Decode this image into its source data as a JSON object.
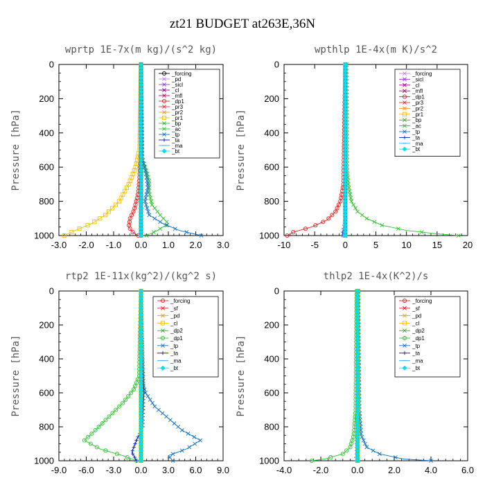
{
  "title": "zt21  BUDGET at263E,36N",
  "ylabel": "Pressure [hPa]",
  "chart_data": [
    {
      "type": "line",
      "title": "wprtp  1E-7x(m kg)/(s^2 kg)",
      "ylabel": "Pressure [hPa]",
      "xlim": [
        -3,
        3
      ],
      "ylim": [
        1000,
        0
      ],
      "xticks": [
        "-3.0",
        "-2.0",
        "-1.0",
        "0.0",
        "1.0",
        "2.0",
        "3.0"
      ],
      "xtick_values": [
        -3,
        -2,
        -1,
        0,
        1,
        2,
        3
      ],
      "yticks": [
        "0",
        "200",
        "400",
        "600",
        "800",
        "1000"
      ],
      "ytick_values": [
        0,
        200,
        400,
        600,
        800,
        1000
      ],
      "series": [
        {
          "name": "_forcing",
          "color": "#000000",
          "marker": "o",
          "p": [
            0,
            1000
          ],
          "x": [
            0,
            0
          ]
        },
        {
          "name": "_pd",
          "color": "#c080ff",
          "marker": "x",
          "p": [
            0,
            1000
          ],
          "x": [
            0,
            0
          ]
        },
        {
          "name": "_sicl",
          "color": "#8a3fd6",
          "marker": "x",
          "p": [
            0,
            1000
          ],
          "x": [
            0,
            0
          ]
        },
        {
          "name": "_cl",
          "color": "#8b008b",
          "marker": "x",
          "p": [
            0,
            1000
          ],
          "x": [
            0,
            0
          ]
        },
        {
          "name": "_mfl",
          "color": "#c0006a",
          "marker": "x",
          "p": [
            0,
            1000
          ],
          "x": [
            0,
            0
          ]
        },
        {
          "name": "_dp1",
          "color": "#e02020",
          "marker": "o",
          "p": [
            0,
            500,
            650,
            750,
            850,
            900,
            950,
            980,
            1000
          ],
          "x": [
            0,
            0,
            -0.05,
            -0.1,
            -0.25,
            -0.4,
            -0.45,
            -0.3,
            -0.1
          ]
        },
        {
          "name": "_pr3",
          "color": "#e03030",
          "marker": "x",
          "p": [
            0,
            1000
          ],
          "x": [
            0,
            0
          ]
        },
        {
          "name": "_pr2",
          "color": "#ff9020",
          "marker": "x",
          "p": [
            0,
            1000
          ],
          "x": [
            0,
            0
          ]
        },
        {
          "name": "_pr1",
          "color": "#f0c000",
          "marker": "s",
          "p": [
            0,
            500,
            600,
            700,
            800,
            880,
            930,
            970,
            1000
          ],
          "x": [
            0,
            -0.05,
            -0.2,
            -0.45,
            -0.8,
            -1.3,
            -1.8,
            -2.4,
            -2.8
          ]
        },
        {
          "name": "_bp",
          "color": "#30b030",
          "marker": "x",
          "p": [
            0,
            1000
          ],
          "x": [
            0,
            0
          ]
        },
        {
          "name": "_ac",
          "color": "#30c030",
          "marker": "x",
          "p": [
            0,
            550,
            620,
            680,
            750,
            820,
            880,
            930,
            970,
            1000
          ],
          "x": [
            0,
            0.05,
            0.2,
            0.3,
            0.3,
            0.4,
            0.7,
            1.0,
            0.6,
            0.2
          ]
        },
        {
          "name": "_tp",
          "color": "#1070c0",
          "marker": "x",
          "p": [
            0,
            550,
            650,
            720,
            800,
            880,
            930,
            970,
            1000
          ],
          "x": [
            0,
            0.05,
            0.2,
            0.25,
            0.15,
            0.3,
            0.8,
            1.4,
            2.2
          ]
        },
        {
          "name": "_ta",
          "color": "#0020c0",
          "marker": "+",
          "p": [
            0,
            1000
          ],
          "x": [
            0,
            0
          ]
        },
        {
          "name": "_ma",
          "color": "#40a0ff",
          "marker": "-",
          "p": [
            0,
            1000
          ],
          "x": [
            0,
            0
          ]
        },
        {
          "name": "_bt",
          "color": "#00e0f0",
          "marker": "d",
          "p": [
            0,
            1000
          ],
          "x": [
            0,
            0
          ]
        }
      ]
    },
    {
      "type": "line",
      "title": "wpthlp  1E-4x(m K)/s^2",
      "ylabel": "Pressure [hPa]",
      "xlim": [
        -10,
        20
      ],
      "ylim": [
        1000,
        0
      ],
      "xticks": [
        "-10",
        "-5",
        "0",
        "5",
        "10",
        "15",
        "20"
      ],
      "xtick_values": [
        -10,
        -5,
        0,
        5,
        10,
        15,
        20
      ],
      "yticks": [
        "0",
        "200",
        "400",
        "600",
        "800",
        "1000"
      ],
      "ytick_values": [
        0,
        200,
        400,
        600,
        800,
        1000
      ],
      "series": [
        {
          "name": "_forcing",
          "color": "#c080ff",
          "marker": "x",
          "p": [
            0,
            1000
          ],
          "x": [
            0,
            0
          ]
        },
        {
          "name": "_sicl",
          "color": "#8a3fd6",
          "marker": "x",
          "p": [
            0,
            1000
          ],
          "x": [
            0,
            0
          ]
        },
        {
          "name": "_cl",
          "color": "#8b008b",
          "marker": "x",
          "p": [
            0,
            1000
          ],
          "x": [
            0,
            0
          ]
        },
        {
          "name": "_mfl",
          "color": "#c0006a",
          "marker": "x",
          "p": [
            0,
            1000
          ],
          "x": [
            0,
            0
          ]
        },
        {
          "name": "_dp1",
          "color": "#e02020",
          "marker": "o",
          "p": [
            0,
            700,
            800,
            860,
            910,
            950,
            980,
            1000
          ],
          "x": [
            0,
            -0.3,
            -0.8,
            -1.6,
            -3,
            -5.5,
            -8.5,
            -9.5
          ]
        },
        {
          "name": "_pr3",
          "color": "#e03030",
          "marker": "x",
          "p": [
            0,
            1000
          ],
          "x": [
            0,
            0
          ]
        },
        {
          "name": "_pr2",
          "color": "#ff9020",
          "marker": "x",
          "p": [
            0,
            1000
          ],
          "x": [
            0,
            0
          ]
        },
        {
          "name": "_pr1",
          "color": "#f0c000",
          "marker": "s",
          "p": [
            0,
            1000
          ],
          "x": [
            0,
            0
          ]
        },
        {
          "name": "_bp",
          "color": "#30b030",
          "marker": "x",
          "p": [
            0,
            1000
          ],
          "x": [
            0,
            0
          ]
        },
        {
          "name": "_ac",
          "color": "#30c030",
          "marker": "x",
          "p": [
            0,
            600,
            700,
            800,
            860,
            900,
            940,
            970,
            990,
            1000
          ],
          "x": [
            0.2,
            0.3,
            0.5,
            1,
            2,
            3.5,
            6,
            10,
            15,
            18.5
          ]
        },
        {
          "name": "_tp",
          "color": "#1070c0",
          "marker": "x",
          "p": [
            0,
            1000
          ],
          "x": [
            0,
            0
          ]
        },
        {
          "name": "_ta",
          "color": "#0020c0",
          "marker": "+",
          "p": [
            0,
            900,
            960,
            1000
          ],
          "x": [
            0,
            0,
            -0.3,
            -0.5
          ]
        },
        {
          "name": "_ma",
          "color": "#40a0ff",
          "marker": "-",
          "p": [
            0,
            1000
          ],
          "x": [
            0,
            0
          ]
        },
        {
          "name": "_bt",
          "color": "#00e0f0",
          "marker": "d",
          "p": [
            0,
            1000
          ],
          "x": [
            0,
            0
          ]
        }
      ]
    },
    {
      "type": "line",
      "title": "rtp2  1E-11x(kg^2)/(kg^2 s)",
      "ylabel": "Pressure [hPa]",
      "xlim": [
        -9,
        9
      ],
      "ylim": [
        1000,
        0
      ],
      "xticks": [
        "-9.0",
        "-6.0",
        "-3.0",
        "0.0",
        "3.0",
        "6.0",
        "9.0"
      ],
      "xtick_values": [
        -9,
        -6,
        -3,
        0,
        3,
        6,
        9
      ],
      "yticks": [
        "0",
        "200",
        "400",
        "600",
        "800",
        "1000"
      ],
      "ytick_values": [
        0,
        200,
        400,
        600,
        800,
        1000
      ],
      "series": [
        {
          "name": "_forcing",
          "color": "#e02020",
          "marker": "o",
          "p": [
            0,
            1000
          ],
          "x": [
            0,
            0
          ]
        },
        {
          "name": "_sf",
          "color": "#e02020",
          "marker": "x",
          "p": [
            0,
            1000
          ],
          "x": [
            0,
            0
          ]
        },
        {
          "name": "_pd",
          "color": "#f0a000",
          "marker": "x",
          "p": [
            0,
            1000
          ],
          "x": [
            0,
            0
          ]
        },
        {
          "name": "_cl",
          "color": "#f0c000",
          "marker": "s",
          "p": [
            0,
            1000
          ],
          "x": [
            0,
            0
          ]
        },
        {
          "name": "_dp2",
          "color": "#30b030",
          "marker": "x",
          "p": [
            0,
            1000
          ],
          "x": [
            0,
            0
          ]
        },
        {
          "name": "_dp1",
          "color": "#30c030",
          "marker": "o",
          "p": [
            0,
            500,
            580,
            660,
            740,
            820,
            880,
            930,
            970,
            1000
          ],
          "x": [
            0,
            -0.2,
            -0.8,
            -2,
            -3.5,
            -5,
            -6.2,
            -4.5,
            -2,
            -0.5
          ]
        },
        {
          "name": "_tp",
          "color": "#1070c0",
          "marker": "x",
          "p": [
            0,
            550,
            600,
            680,
            750,
            820,
            880,
            930,
            970,
            1000
          ],
          "x": [
            0,
            0.2,
            0.5,
            1.5,
            3,
            4.5,
            6.5,
            5,
            3,
            3.5
          ]
        },
        {
          "name": "_ta",
          "color": "#0020c0",
          "marker": "+",
          "p": [
            0,
            600,
            800,
            880,
            950,
            1000
          ],
          "x": [
            0,
            0.3,
            0.2,
            -0.5,
            -1,
            -0.5
          ]
        },
        {
          "name": "_ma",
          "color": "#40a0ff",
          "marker": "-",
          "p": [
            0,
            1000
          ],
          "x": [
            0,
            0
          ]
        },
        {
          "name": "_bt",
          "color": "#00e0f0",
          "marker": "d",
          "p": [
            0,
            1000
          ],
          "x": [
            0,
            0
          ]
        }
      ]
    },
    {
      "type": "line",
      "title": "thlp2  1E-4x(K^2)/s",
      "ylabel": "Pressure [hPa]",
      "xlim": [
        -4,
        6
      ],
      "ylim": [
        1000,
        0
      ],
      "xticks": [
        "-4.0",
        "-2.0",
        "0.0",
        "2.0",
        "4.0",
        "6.0"
      ],
      "xtick_values": [
        -4,
        -2,
        0,
        2,
        4,
        6
      ],
      "yticks": [
        "0",
        "200",
        "400",
        "600",
        "800",
        "1000"
      ],
      "ytick_values": [
        0,
        200,
        400,
        600,
        800,
        1000
      ],
      "series": [
        {
          "name": "_forcing",
          "color": "#e02020",
          "marker": "o",
          "p": [
            0,
            1000
          ],
          "x": [
            0,
            0
          ]
        },
        {
          "name": "_sf",
          "color": "#e02020",
          "marker": "x",
          "p": [
            0,
            1000
          ],
          "x": [
            0,
            0
          ]
        },
        {
          "name": "_pd",
          "color": "#f0a000",
          "marker": "x",
          "p": [
            0,
            1000
          ],
          "x": [
            0,
            0
          ]
        },
        {
          "name": "_cl",
          "color": "#f0c000",
          "marker": "s",
          "p": [
            0,
            1000
          ],
          "x": [
            0,
            0
          ]
        },
        {
          "name": "_dp2",
          "color": "#30b030",
          "marker": "x",
          "p": [
            0,
            1000
          ],
          "x": [
            0,
            0
          ]
        },
        {
          "name": "_dp1",
          "color": "#30c030",
          "marker": "o",
          "p": [
            0,
            700,
            850,
            920,
            960,
            990,
            1000
          ],
          "x": [
            -0.05,
            -0.1,
            -0.2,
            -0.4,
            -0.8,
            -1.8,
            -2.5
          ]
        },
        {
          "name": "_tp",
          "color": "#1070c0",
          "marker": "x",
          "p": [
            0,
            700,
            850,
            920,
            960,
            990,
            1000
          ],
          "x": [
            0.05,
            0.1,
            0.2,
            0.5,
            1.2,
            2.5,
            4
          ]
        },
        {
          "name": "_ta",
          "color": "#0020c0",
          "marker": "+",
          "p": [
            0,
            950,
            1000
          ],
          "x": [
            0,
            -0.05,
            -0.1
          ]
        },
        {
          "name": "_ma",
          "color": "#40a0ff",
          "marker": "-",
          "p": [
            0,
            1000
          ],
          "x": [
            0,
            0
          ]
        },
        {
          "name": "_bt",
          "color": "#00e0f0",
          "marker": "d",
          "p": [
            0,
            1000
          ],
          "x": [
            0,
            0
          ]
        }
      ]
    }
  ]
}
